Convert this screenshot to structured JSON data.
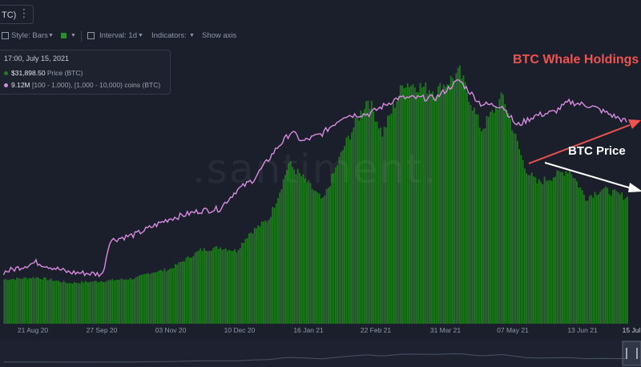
{
  "header": {
    "ticker": "TC)",
    "style_label": "Style: Bars",
    "interval_label": "Interval: 1d",
    "indicators_label": "Indicators:",
    "show_axis_label": "Show axis"
  },
  "legend": {
    "date": "17:00, July 15, 2021",
    "price_value": "$31,898.50",
    "price_label": "Price (BTC)",
    "holdings_value": "9.12M",
    "holdings_label": "[100 - 1,000), [1,000 - 10,000) coins (BTC)"
  },
  "watermark": ".santiment.",
  "annotations": {
    "whale": "BTC Whale Holdings",
    "price": "BTC Price"
  },
  "colors": {
    "background": "#1b1f2b",
    "price_bars": "#1f7a1f",
    "holdings_line": "#d98be0",
    "whale_annotation": "#f0524f",
    "price_annotation": "#ffffff"
  },
  "chart_data": {
    "type": "bar",
    "x_tick_labels": [
      "21 Aug 20",
      "27 Sep 20",
      "03 Nov 20",
      "10 Dec 20",
      "16 Jan 21",
      "22 Feb 21",
      "31 Mar 21",
      "07 May 21",
      "13 Jun 21",
      "15 Jul"
    ],
    "series": [
      {
        "name": "Price (BTC)",
        "type": "bar",
        "x": [
          "2020-08-03",
          "2020-08-21",
          "2020-09-08",
          "2020-09-27",
          "2020-10-15",
          "2020-10-23",
          "2020-11-03",
          "2020-11-20",
          "2020-12-01",
          "2020-12-10",
          "2020-12-17",
          "2020-12-28",
          "2021-01-03",
          "2021-01-08",
          "2021-01-16",
          "2021-01-27",
          "2021-02-08",
          "2021-02-21",
          "2021-03-01",
          "2021-03-13",
          "2021-03-31",
          "2021-04-13",
          "2021-04-25",
          "2021-05-07",
          "2021-05-12",
          "2021-05-19",
          "2021-05-26",
          "2021-06-13",
          "2021-06-22",
          "2021-07-01",
          "2021-07-15"
        ],
        "values": [
          11200,
          11700,
          10300,
          10800,
          11500,
          12900,
          13800,
          18600,
          19300,
          18400,
          22800,
          26500,
          33500,
          40500,
          36800,
          31000,
          45000,
          57000,
          48000,
          61000,
          58800,
          63500,
          49000,
          57500,
          50000,
          39500,
          35500,
          39000,
          31800,
          34000,
          31898.5
        ]
      },
      {
        "name": "[100 - 1,000), [1,000 - 10,000) coins (BTC)",
        "type": "line",
        "x": [
          "2020-08-03",
          "2020-08-21",
          "2020-09-08",
          "2020-09-27",
          "2020-10-01",
          "2020-10-15",
          "2020-11-03",
          "2020-11-20",
          "2020-12-01",
          "2020-12-10",
          "2020-12-20",
          "2021-01-02",
          "2021-01-10",
          "2021-01-16",
          "2021-01-27",
          "2021-02-08",
          "2021-02-22",
          "2021-03-10",
          "2021-03-31",
          "2021-04-13",
          "2021-04-25",
          "2021-05-07",
          "2021-05-15",
          "2021-05-25",
          "2021-06-05",
          "2021-06-13",
          "2021-06-25",
          "2021-07-05",
          "2021-07-15"
        ],
        "values": [
          8.36,
          8.41,
          8.36,
          8.35,
          8.52,
          8.55,
          8.63,
          8.67,
          8.68,
          8.77,
          8.83,
          8.99,
          9.07,
          9.02,
          9.06,
          9.15,
          9.16,
          9.24,
          9.24,
          9.33,
          9.21,
          9.2,
          9.1,
          9.15,
          9.17,
          9.22,
          9.2,
          9.16,
          9.12
        ]
      }
    ],
    "y_left_range": [
      8.1,
      9.5
    ],
    "y_right_range": [
      0,
      70000
    ],
    "grid": false,
    "legend_position": "top-left"
  }
}
